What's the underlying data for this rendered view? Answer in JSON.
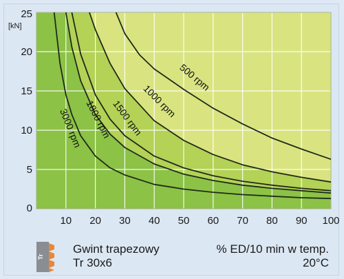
{
  "chart_data": {
    "type": "area",
    "title": "",
    "xlabel": "% ED/10 min w temp. 20°C",
    "ylabel": "[kN]",
    "xlim": [
      0,
      100
    ],
    "ylim": [
      0,
      25
    ],
    "x_ticks": [
      "10",
      "20",
      "30",
      "40",
      "50",
      "60",
      "70",
      "80",
      "90",
      "100"
    ],
    "y_ticks": [
      "0",
      "5",
      "10",
      "15",
      "20",
      "25"
    ],
    "y_unit": "[kN]",
    "grid": true,
    "series": [
      {
        "name": "500 rpm",
        "x": [
          27,
          30,
          35,
          40,
          50,
          60,
          70,
          80,
          90,
          100
        ],
        "values": [
          25,
          22.3,
          19.6,
          17.8,
          15.2,
          12.8,
          10.8,
          9.0,
          7.6,
          6.3
        ]
      },
      {
        "name": "1000 rpm",
        "x": [
          18,
          20,
          25,
          30,
          40,
          50,
          60,
          70,
          80,
          90,
          100
        ],
        "values": [
          25,
          22.8,
          18.5,
          15.3,
          11.2,
          8.7,
          6.9,
          5.6,
          4.7,
          4.0,
          3.4
        ]
      },
      {
        "name": "1500 rpm",
        "x": [
          12,
          15,
          20,
          25,
          30,
          40,
          50,
          60,
          70,
          80,
          90,
          100
        ],
        "values": [
          25,
          19.7,
          14.5,
          11.4,
          9.3,
          6.7,
          5.2,
          4.2,
          3.5,
          3.0,
          2.6,
          2.3
        ]
      },
      {
        "name": "1800 rpm",
        "x": [
          10,
          12,
          15,
          20,
          25,
          30,
          40,
          50,
          60,
          70,
          80,
          90,
          100
        ],
        "values": [
          25,
          20.6,
          16.3,
          12.0,
          9.5,
          7.8,
          5.7,
          4.4,
          3.6,
          3.0,
          2.6,
          2.3,
          2.0
        ]
      },
      {
        "name": "3000 rpm",
        "x": [
          6,
          8,
          10,
          12,
          15,
          20,
          25,
          30,
          40,
          50,
          60,
          70,
          80,
          90,
          100
        ],
        "values": [
          25,
          18.5,
          14.5,
          12.0,
          9.3,
          6.7,
          5.2,
          4.3,
          3.1,
          2.5,
          2.1,
          1.8,
          1.6,
          1.4,
          1.3
        ]
      }
    ],
    "region_colors": [
      "#d9e480",
      "#b3d256",
      "#8cc246"
    ]
  },
  "footer": {
    "icon_text": "Tr",
    "thread_line1": "Gwint trapezowy",
    "thread_line2": "Tr 30x6",
    "caption_line1": "% ED/10 min w temp.",
    "caption_line2": "20°C"
  },
  "colors": {
    "background": "#dbe7f3",
    "icon_orange": "#e8873a",
    "icon_gray": "#8a8d91",
    "curve": "#1f2a1a",
    "grid": "#ffffff"
  },
  "icons": [
    "trapezoidal-thread-icon"
  ]
}
